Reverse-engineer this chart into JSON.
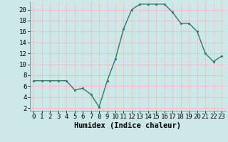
{
  "x": [
    0,
    1,
    2,
    3,
    4,
    5,
    6,
    7,
    8,
    9,
    10,
    11,
    12,
    13,
    14,
    15,
    16,
    17,
    18,
    19,
    20,
    21,
    22,
    23
  ],
  "y": [
    7,
    7,
    7,
    7,
    7,
    5.3,
    5.6,
    4.5,
    2.2,
    7,
    11,
    16.5,
    20,
    21,
    21,
    21,
    21,
    19.5,
    17.5,
    17.5,
    16,
    12,
    10.5,
    11.5
  ],
  "line_color": "#2d7a6a",
  "marker": "s",
  "marker_size": 2,
  "bg_color": "#cce8e8",
  "grid_color": "#ffb6b6",
  "title": "",
  "xlabel": "Humidex (Indice chaleur)",
  "ylabel": "",
  "xlim": [
    -0.5,
    23.5
  ],
  "ylim": [
    1.5,
    21.5
  ],
  "yticks": [
    2,
    4,
    6,
    8,
    10,
    12,
    14,
    16,
    18,
    20
  ],
  "xticks": [
    0,
    1,
    2,
    3,
    4,
    5,
    6,
    7,
    8,
    9,
    10,
    11,
    12,
    13,
    14,
    15,
    16,
    17,
    18,
    19,
    20,
    21,
    22,
    23
  ],
  "tick_fontsize": 6.5,
  "xlabel_fontsize": 7.5,
  "line_width": 1.0
}
